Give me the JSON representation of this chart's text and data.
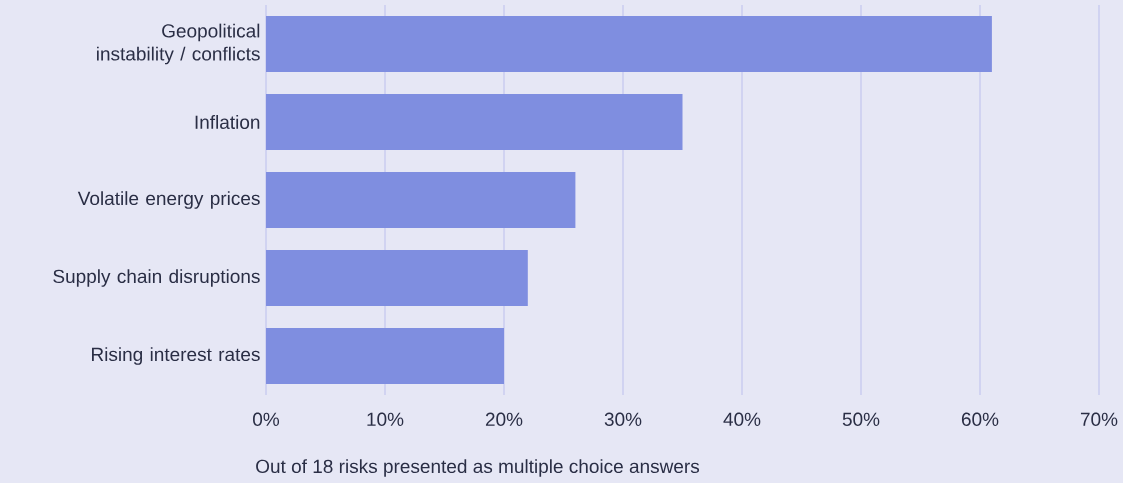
{
  "chart_data": {
    "type": "bar",
    "orientation": "horizontal",
    "categories": [
      "Geopolitical instability / conflicts",
      "Inflation",
      "Volatile energy prices",
      "Supply chain disruptions",
      "Rising interest rates"
    ],
    "values": [
      61,
      35,
      26,
      22,
      20
    ],
    "color": "#7f8ee0",
    "xlim": [
      0,
      70
    ],
    "xticks": [
      {
        "value": 0,
        "label": "0%"
      },
      {
        "value": 10,
        "label": "10%"
      },
      {
        "value": 20,
        "label": "20%"
      },
      {
        "value": 30,
        "label": "30%"
      },
      {
        "value": 40,
        "label": "40%"
      },
      {
        "value": 50,
        "label": "50%"
      },
      {
        "value": 60,
        "label": "60%"
      },
      {
        "value": 70,
        "label": "70%"
      }
    ],
    "grid": "x",
    "annotations": [
      "Out of 18 risks presented as multiple choice answers"
    ]
  }
}
